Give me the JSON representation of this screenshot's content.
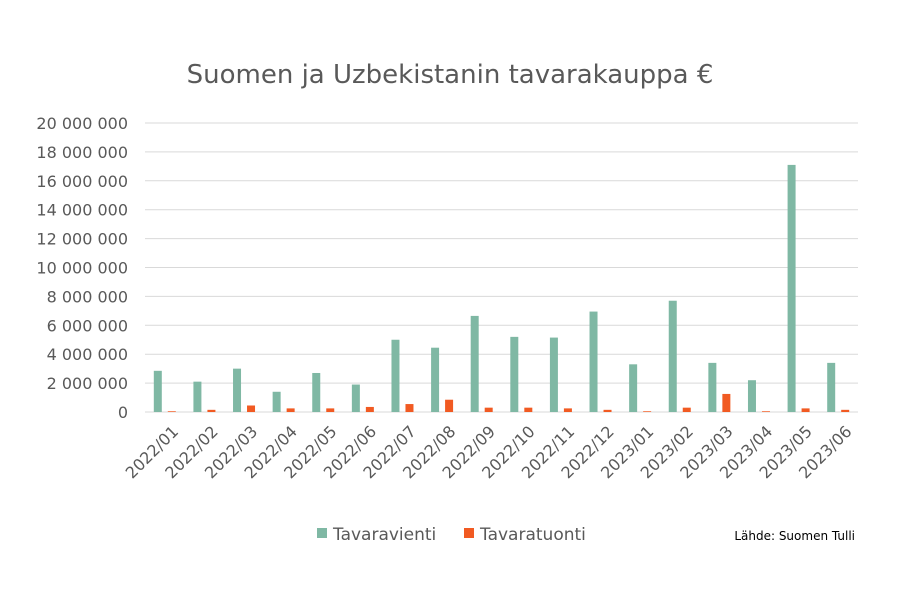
{
  "chart_data": {
    "type": "bar",
    "title": "Suomen ja Uzbekistanin tavarakauppa €",
    "xlabel": "",
    "ylabel": "",
    "ylim": [
      0,
      20000000
    ],
    "y_ticks": [
      "0",
      "2 000 000",
      "4 000 000",
      "6 000 000",
      "8 000 000",
      "10 000 000",
      "12 000 000",
      "14 000 000",
      "16 000 000",
      "18 000 000",
      "20 000 000"
    ],
    "y_tick_values": [
      0,
      2000000,
      4000000,
      6000000,
      8000000,
      10000000,
      12000000,
      14000000,
      16000000,
      18000000,
      20000000
    ],
    "categories": [
      "2022/01",
      "2022/02",
      "2022/03",
      "2022/04",
      "2022/05",
      "2022/06",
      "2022/07",
      "2022/08",
      "2022/09",
      "2022/10",
      "2022/11",
      "2022/12",
      "2023/01",
      "2023/02",
      "2023/03",
      "2023/04",
      "2023/05",
      "2023/06"
    ],
    "series": [
      {
        "name": "Tavaravienti",
        "color": "#7fb8a4",
        "values": [
          2850000,
          2100000,
          3000000,
          1400000,
          2700000,
          1900000,
          5000000,
          4450000,
          6650000,
          5200000,
          5150000,
          6950000,
          3300000,
          7700000,
          3400000,
          2200000,
          17100000,
          3400000
        ]
      },
      {
        "name": "Tavaratuonti",
        "color": "#f15a22",
        "values": [
          50000,
          150000,
          450000,
          250000,
          250000,
          350000,
          550000,
          850000,
          300000,
          300000,
          250000,
          150000,
          50000,
          300000,
          1250000,
          50000,
          250000,
          150000
        ]
      }
    ],
    "grid": true,
    "legend": "bottom",
    "source": "Lähde: Suomen Tulli"
  }
}
